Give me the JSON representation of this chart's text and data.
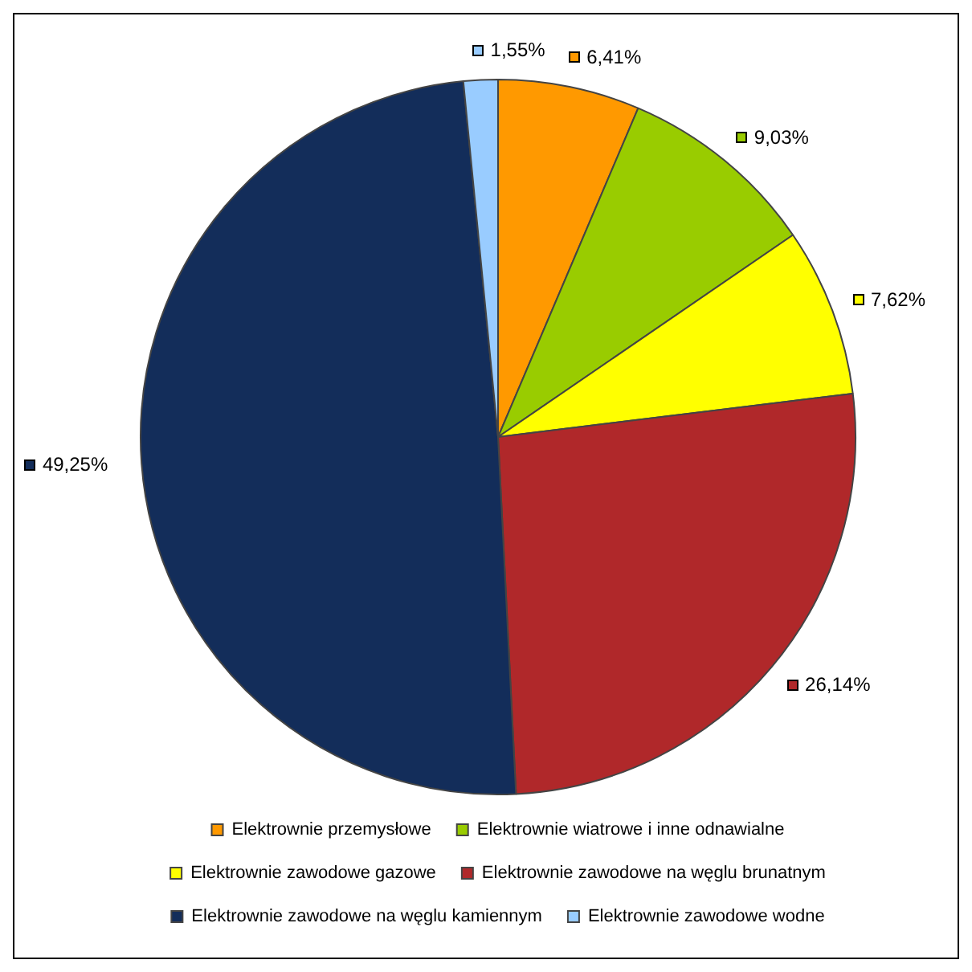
{
  "chart_data": {
    "type": "pie",
    "categories": [
      "Elektrownie przemysłowe",
      "Elektrownie wiatrowe i inne odnawialne",
      "Elektrownie zawodowe gazowe",
      "Elektrownie zawodowe na węglu brunatnym",
      "Elektrownie zawodowe na węglu kamiennym",
      "Elektrownie zawodowe wodne"
    ],
    "values": [
      6.41,
      9.03,
      7.62,
      26.14,
      49.25,
      1.55
    ],
    "value_labels": [
      "6,41%",
      "9,03%",
      "7,62%",
      "26,14%",
      "49,25%",
      "1,55%"
    ],
    "colors": [
      "#ff9900",
      "#99cc00",
      "#ffff00",
      "#b0282a",
      "#132d5a",
      "#99ccff"
    ],
    "legend": "bottom"
  }
}
